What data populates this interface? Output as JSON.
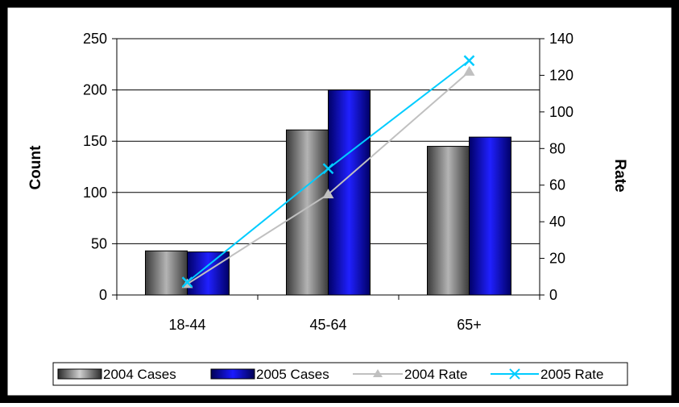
{
  "chart_data": {
    "type": "bar",
    "categories": [
      "18-44",
      "45-64",
      "65+"
    ],
    "series": [
      {
        "name": "2004 Cases",
        "kind": "bar",
        "axis": "left",
        "values": [
          43,
          161,
          145
        ]
      },
      {
        "name": "2005 Cases",
        "kind": "bar",
        "axis": "left",
        "values": [
          42,
          200,
          154
        ]
      },
      {
        "name": "2004 Rate",
        "kind": "line",
        "axis": "right",
        "marker": "triangle",
        "values": [
          6,
          55,
          122
        ]
      },
      {
        "name": "2005 Rate",
        "kind": "line",
        "axis": "right",
        "marker": "x",
        "values": [
          7,
          69,
          128
        ]
      }
    ],
    "ylabel": "Count",
    "y2label": "Rate",
    "ylim": [
      0,
      250
    ],
    "y2lim": [
      0,
      140
    ],
    "yticks": [
      "0",
      "50",
      "100",
      "150",
      "200",
      "250"
    ],
    "y2ticks": [
      "0",
      "20",
      "40",
      "60",
      "80",
      "100",
      "120",
      "140"
    ],
    "grid": true,
    "legend": "bottom",
    "colors": {
      "background": "#000000",
      "plot": "#ffffff",
      "bar_2004_edge": "#3a3a3a",
      "bar_2004_center": "#b4b4b4",
      "bar_2005_edge": "#000066",
      "bar_2005_center": "#2020ff",
      "line_2004": "#c0c0c0",
      "line_2005": "#00ccff"
    }
  }
}
